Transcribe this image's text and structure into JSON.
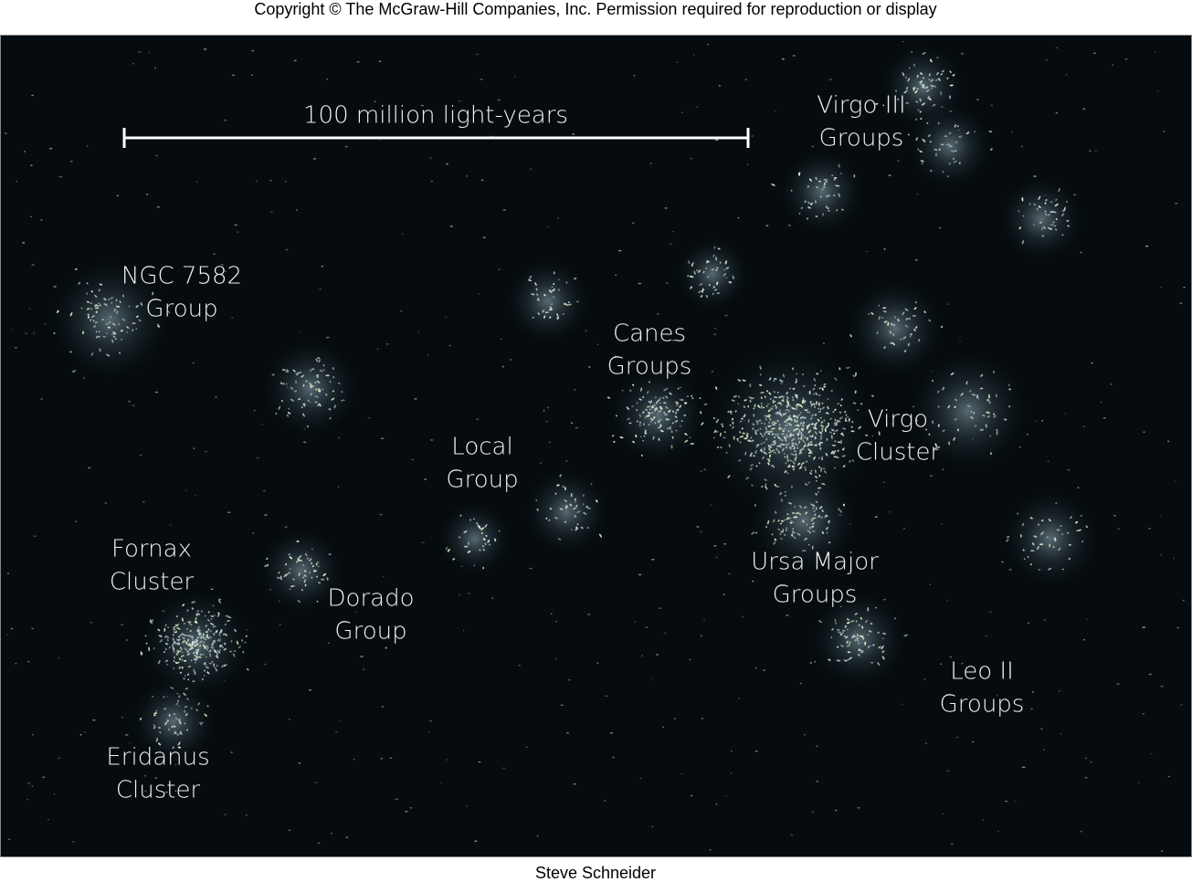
{
  "header": {
    "copyright": "Copyright © The McGraw-Hill Companies, Inc. Permission required for reproduction or display"
  },
  "scale_bar": {
    "label": "100 million light-years"
  },
  "labels": [
    {
      "lines": [
        "Virgo III",
        "Groups"
      ]
    },
    {
      "lines": [
        "NGC 7582",
        "Group"
      ]
    },
    {
      "lines": [
        "Canes",
        "Groups"
      ]
    },
    {
      "lines": [
        "Local",
        "Group"
      ]
    },
    {
      "lines": [
        "Virgo",
        "Cluster"
      ]
    },
    {
      "lines": [
        "Fornax",
        "Cluster"
      ]
    },
    {
      "lines": [
        "Dorado",
        "Group"
      ]
    },
    {
      "lines": [
        "Ursa Major",
        "Groups"
      ]
    },
    {
      "lines": [
        "Leo II",
        "Groups"
      ]
    },
    {
      "lines": [
        "Eridanus",
        "Cluster"
      ]
    }
  ],
  "credit": "Steve Schneider"
}
